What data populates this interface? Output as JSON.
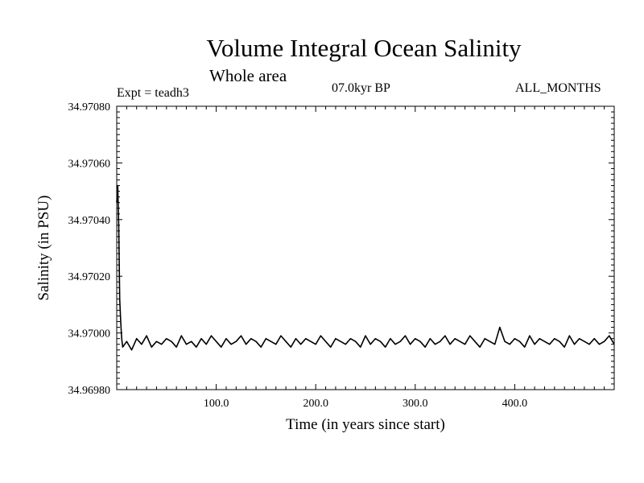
{
  "chart_data": {
    "type": "line",
    "title": "Volume Integral Ocean Salinity",
    "subtitle": "Whole area",
    "annotations": {
      "experiment": "Expt = teadh3",
      "period": "07.0kyr BP",
      "months": "ALL_MONTHS"
    },
    "xlabel": "Time (in years since start)",
    "ylabel": "Salinity (in PSU)",
    "xlim": [
      0,
      500
    ],
    "ylim": [
      34.9698,
      34.9708
    ],
    "x_ticks": [
      {
        "value": 100,
        "label": "100.0"
      },
      {
        "value": 200,
        "label": "200.0"
      },
      {
        "value": 300,
        "label": "300.0"
      },
      {
        "value": 400,
        "label": "400.0"
      }
    ],
    "y_ticks": [
      {
        "value": 34.9698,
        "label": "34.96980"
      },
      {
        "value": 34.97,
        "label": "34.97000"
      },
      {
        "value": 34.9702,
        "label": "34.97020"
      },
      {
        "value": 34.9704,
        "label": "34.97040"
      },
      {
        "value": 34.9706,
        "label": "34.97060"
      },
      {
        "value": 34.9708,
        "label": "34.97080"
      }
    ],
    "series": [
      {
        "name": "Salinity",
        "color": "#000000",
        "x": [
          0,
          1,
          2,
          3,
          4,
          5,
          6,
          8,
          10,
          15,
          20,
          25,
          30,
          35,
          40,
          45,
          50,
          55,
          60,
          65,
          70,
          75,
          80,
          85,
          90,
          95,
          100,
          105,
          110,
          115,
          120,
          125,
          130,
          135,
          140,
          145,
          150,
          155,
          160,
          165,
          170,
          175,
          180,
          185,
          190,
          195,
          200,
          205,
          210,
          215,
          220,
          225,
          230,
          235,
          240,
          245,
          250,
          255,
          260,
          265,
          270,
          275,
          280,
          285,
          290,
          295,
          300,
          305,
          310,
          315,
          320,
          325,
          330,
          335,
          340,
          345,
          350,
          355,
          360,
          365,
          370,
          375,
          380,
          385,
          390,
          395,
          400,
          405,
          410,
          415,
          420,
          425,
          430,
          435,
          440,
          445,
          450,
          455,
          460,
          465,
          470,
          475,
          480,
          485,
          490,
          495,
          500
        ],
        "values": [
          34.97046,
          34.97052,
          34.97038,
          34.97012,
          34.97004,
          34.96998,
          34.96995,
          34.96996,
          34.96997,
          34.96994,
          34.96998,
          34.96996,
          34.96999,
          34.96995,
          34.96997,
          34.96996,
          34.96998,
          34.96997,
          34.96995,
          34.96999,
          34.96996,
          34.96997,
          34.96995,
          34.96998,
          34.96996,
          34.96999,
          34.96997,
          34.96995,
          34.96998,
          34.96996,
          34.96997,
          34.96999,
          34.96996,
          34.96998,
          34.96997,
          34.96995,
          34.96998,
          34.96997,
          34.96996,
          34.96999,
          34.96997,
          34.96995,
          34.96998,
          34.96996,
          34.96998,
          34.96997,
          34.96996,
          34.96999,
          34.96997,
          34.96995,
          34.96998,
          34.96997,
          34.96996,
          34.96998,
          34.96997,
          34.96995,
          34.96999,
          34.96996,
          34.96998,
          34.96997,
          34.96995,
          34.96998,
          34.96996,
          34.96997,
          34.96999,
          34.96996,
          34.96998,
          34.96997,
          34.96995,
          34.96998,
          34.96996,
          34.96997,
          34.96999,
          34.96996,
          34.96998,
          34.96997,
          34.96996,
          34.96999,
          34.96997,
          34.96995,
          34.96998,
          34.96997,
          34.96996,
          34.97002,
          34.96997,
          34.96996,
          34.96998,
          34.96997,
          34.96995,
          34.96999,
          34.96996,
          34.96998,
          34.96997,
          34.96996,
          34.96998,
          34.96997,
          34.96995,
          34.96999,
          34.96996,
          34.96998,
          34.96997,
          34.96996,
          34.96998,
          34.96996,
          34.96997,
          34.96999,
          34.96996
        ]
      }
    ]
  }
}
